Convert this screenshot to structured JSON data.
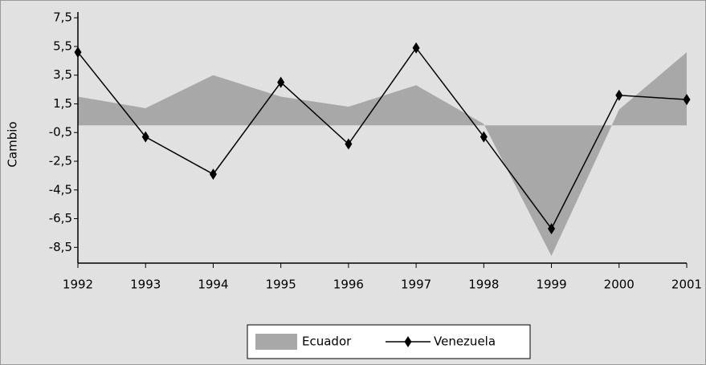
{
  "chart_data": {
    "type": "line",
    "y_label": "Cambio",
    "categories": [
      "1992",
      "1993",
      "1994",
      "1995",
      "1996",
      "1997",
      "1998",
      "1999",
      "2000",
      "2001"
    ],
    "series": [
      {
        "name": "Ecuador",
        "kind": "area",
        "color": "#a8a8a8",
        "values": [
          2.0,
          1.2,
          3.5,
          2.0,
          1.3,
          2.8,
          0.1,
          -9.1,
          1.1,
          5.1
        ]
      },
      {
        "name": "Venezuela",
        "kind": "line",
        "color": "#000000",
        "values": [
          5.1,
          -0.8,
          -3.4,
          3.0,
          -1.3,
          5.4,
          -0.8,
          -7.2,
          2.1,
          1.8
        ]
      }
    ],
    "ylim": [
      -9.6,
      7.9
    ],
    "yticks": [
      {
        "value": 7.5,
        "label": "7,5"
      },
      {
        "value": 5.5,
        "label": "5,5"
      },
      {
        "value": 3.5,
        "label": "3,5"
      },
      {
        "value": 1.5,
        "label": "1,5"
      },
      {
        "value": -0.5,
        "label": "-0,5"
      },
      {
        "value": -2.5,
        "label": "-2,5"
      },
      {
        "value": -4.5,
        "label": "-4,5"
      },
      {
        "value": -6.5,
        "label": "-6,5"
      },
      {
        "value": -8.5,
        "label": "-8,5"
      }
    ],
    "legend": "bottom"
  }
}
